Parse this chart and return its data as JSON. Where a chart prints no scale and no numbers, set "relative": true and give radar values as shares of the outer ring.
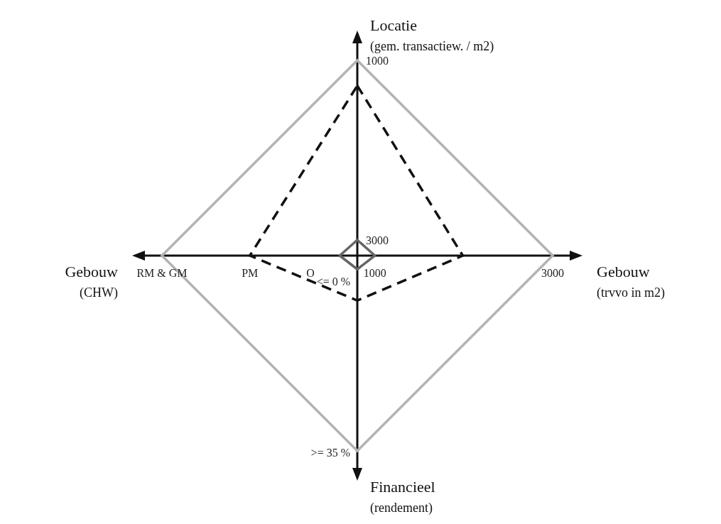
{
  "chart_data": {
    "type": "radar",
    "relative": true,
    "categories": [
      "Locatie\n(gem. transactiew. / m2)",
      "Gebouw\n(trvvo in m2)",
      "Financieel\n(rendement)",
      "Gebouw\n(CHW)"
    ],
    "series": [
      {
        "color": "#111111",
        "values": [
          0.87,
          0.54,
          0.23,
          0.55
        ],
        "line_style": "dashed"
      },
      {
        "color": "#666666",
        "values": [
          0.08,
          0.09,
          0.07,
          0.09
        ],
        "line_style": "solid"
      }
    ],
    "annotations": [
      "1000",
      "3000",
      "1000",
      "3000",
      "<= 0 %",
      ">= 35 %",
      "RM & GM",
      "PM",
      "O"
    ],
    "grid": true,
    "legend": false
  }
}
